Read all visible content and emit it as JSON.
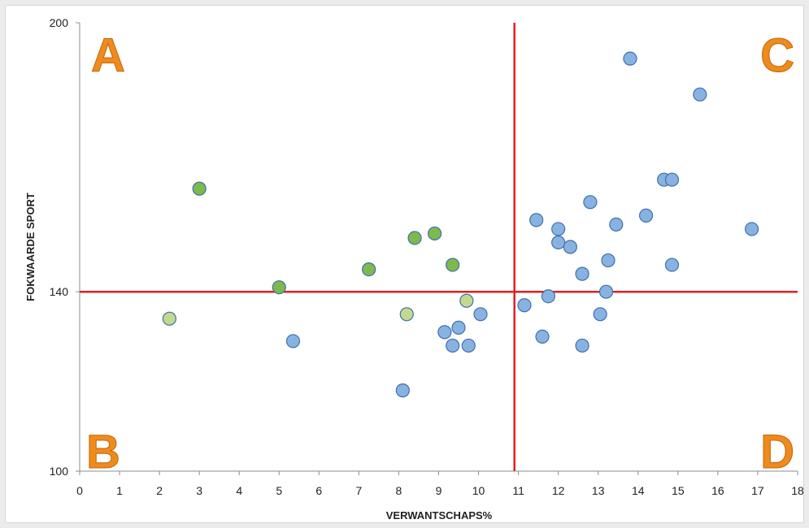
{
  "chart_data": {
    "type": "scatter",
    "title": "",
    "xlabel": "VERWANTSCHAPS%",
    "ylabel": "FOKWAARDE SPORT",
    "xlim": [
      0,
      18
    ],
    "ylim": [
      100,
      200
    ],
    "x_ticks": [
      "0",
      "1",
      "2",
      "3",
      "4",
      "5",
      "6",
      "7",
      "8",
      "9",
      "10",
      "11",
      "12",
      "13",
      "14",
      "15",
      "16",
      "17",
      "18"
    ],
    "y_ticks": [
      "100",
      "140",
      "200"
    ],
    "grid": false,
    "reference_lines": {
      "x": 10.9,
      "y": 140,
      "color": "#e02020"
    },
    "quadrant_labels": [
      {
        "label": "A",
        "position": "top-left"
      },
      {
        "label": "B",
        "position": "bottom-left"
      },
      {
        "label": "C",
        "position": "top-right"
      },
      {
        "label": "D",
        "position": "bottom-right"
      }
    ],
    "quadrant_label_color": "#ef8a1c",
    "series": [
      {
        "color": "#7dba4c",
        "points": [
          {
            "x": 3.0,
            "y": 163
          },
          {
            "x": 8.4,
            "y": 152
          },
          {
            "x": 8.9,
            "y": 153
          },
          {
            "x": 7.25,
            "y": 145
          },
          {
            "x": 9.35,
            "y": 146
          },
          {
            "x": 5.0,
            "y": 141
          }
        ]
      },
      {
        "color": "#c2d98e",
        "points": [
          {
            "x": 2.25,
            "y": 134
          },
          {
            "x": 8.2,
            "y": 135
          },
          {
            "x": 9.7,
            "y": 138
          }
        ]
      },
      {
        "color": "#88b3e1",
        "points": [
          {
            "x": 5.35,
            "y": 129
          },
          {
            "x": 8.1,
            "y": 118
          },
          {
            "x": 9.15,
            "y": 131
          },
          {
            "x": 9.5,
            "y": 132
          },
          {
            "x": 9.35,
            "y": 128
          },
          {
            "x": 9.75,
            "y": 128
          },
          {
            "x": 10.05,
            "y": 135
          },
          {
            "x": 11.15,
            "y": 137
          },
          {
            "x": 11.6,
            "y": 130
          },
          {
            "x": 11.75,
            "y": 139
          },
          {
            "x": 11.45,
            "y": 156
          },
          {
            "x": 12.0,
            "y": 154
          },
          {
            "x": 12.0,
            "y": 151
          },
          {
            "x": 12.3,
            "y": 150
          },
          {
            "x": 12.6,
            "y": 144
          },
          {
            "x": 12.6,
            "y": 128
          },
          {
            "x": 12.8,
            "y": 160
          },
          {
            "x": 13.05,
            "y": 135
          },
          {
            "x": 13.2,
            "y": 140
          },
          {
            "x": 13.25,
            "y": 147
          },
          {
            "x": 13.45,
            "y": 155
          },
          {
            "x": 13.8,
            "y": 192
          },
          {
            "x": 14.2,
            "y": 157
          },
          {
            "x": 14.65,
            "y": 165
          },
          {
            "x": 14.85,
            "y": 165
          },
          {
            "x": 14.85,
            "y": 146
          },
          {
            "x": 15.55,
            "y": 184
          },
          {
            "x": 16.85,
            "y": 154
          }
        ]
      }
    ]
  }
}
